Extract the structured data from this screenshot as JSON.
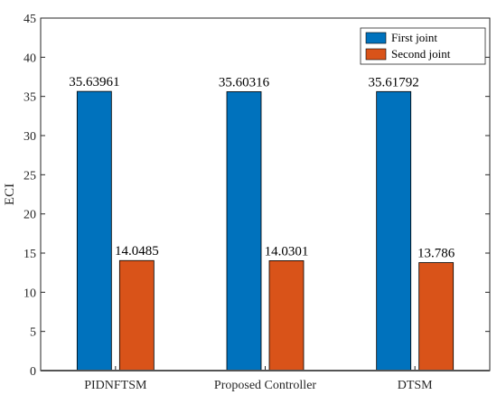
{
  "chart_data": {
    "type": "bar",
    "title": "",
    "xlabel": "",
    "ylabel": "ECI",
    "categories": [
      "PIDNFTSM",
      "Proposed Controller",
      "DTSM"
    ],
    "series": [
      {
        "name": "First joint",
        "values": [
          35.63961,
          35.60316,
          35.61792
        ],
        "labels": [
          "35.63961",
          "35.60316",
          "35.61792"
        ],
        "color": "#0072BD"
      },
      {
        "name": "Second joint",
        "values": [
          14.0485,
          14.0301,
          13.786
        ],
        "labels": [
          "14.0485",
          "14.0301",
          "13.786"
        ],
        "color": "#D95319"
      }
    ],
    "ylim": [
      0,
      45
    ],
    "yticks": [
      0,
      5,
      10,
      15,
      20,
      25,
      30,
      35,
      40,
      45
    ],
    "grid": false,
    "legend_position": "top-right"
  }
}
